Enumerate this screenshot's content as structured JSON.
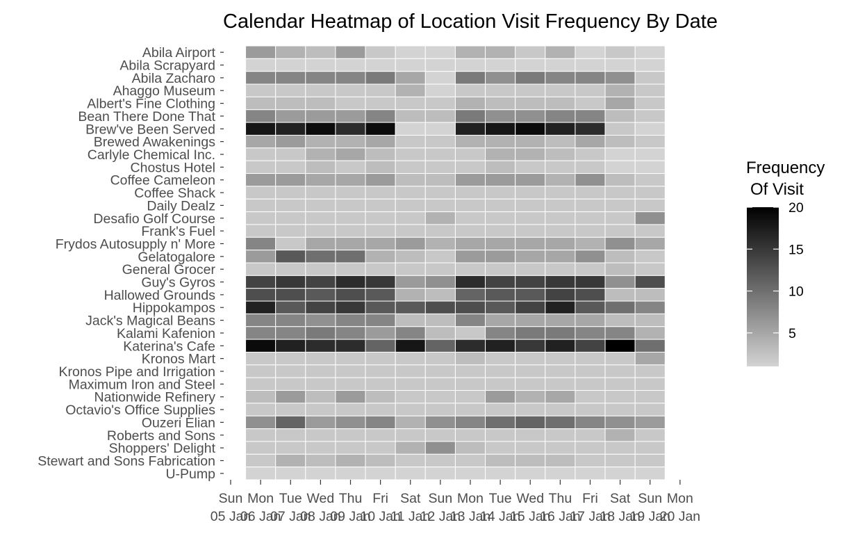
{
  "chart_data": {
    "type": "heatmap",
    "title": "Calendar Heatmap of Location Visit Frequency By Date",
    "xlabel": "",
    "ylabel": "",
    "legend": {
      "title_line1": "Frequency",
      "title_line2": "Of Visit",
      "placement": "right",
      "ticks": [
        5,
        10,
        15,
        20
      ],
      "min": 1,
      "max": 20,
      "low_color": "#d3d3d3",
      "high_color": "#000000"
    },
    "missing_color": "#d3d3d3",
    "grid": false,
    "x_ticks": [
      {
        "day": "Sun",
        "date": "05 Jan"
      },
      {
        "day": "Mon",
        "date": "06 Jan"
      },
      {
        "day": "Tue",
        "date": "07 Jan"
      },
      {
        "day": "Wed",
        "date": "08 Jan"
      },
      {
        "day": "Thu",
        "date": "09 Jan"
      },
      {
        "day": "Fri",
        "date": "10 Jan"
      },
      {
        "day": "Sat",
        "date": "11 Jan"
      },
      {
        "day": "Sun",
        "date": "12 Jan"
      },
      {
        "day": "Mon",
        "date": "13 Jan"
      },
      {
        "day": "Tue",
        "date": "14 Jan"
      },
      {
        "day": "Wed",
        "date": "15 Jan"
      },
      {
        "day": "Thu",
        "date": "16 Jan"
      },
      {
        "day": "Fri",
        "date": "17 Jan"
      },
      {
        "day": "Sat",
        "date": "18 Jan"
      },
      {
        "day": "Sun",
        "date": "19 Jan"
      },
      {
        "day": "Mon",
        "date": "20 Jan"
      }
    ],
    "dates": [
      "06 Jan",
      "07 Jan",
      "08 Jan",
      "09 Jan",
      "10 Jan",
      "11 Jan",
      "12 Jan",
      "13 Jan",
      "14 Jan",
      "15 Jan",
      "16 Jan",
      "17 Jan",
      "18 Jan",
      "19 Jan"
    ],
    "locations": [
      "Abila Airport",
      "Abila Scrapyard",
      "Abila Zacharo",
      "Ahaggo Museum",
      "Albert's Fine Clothing",
      "Bean There Done That",
      "Brew've Been Served",
      "Brewed Awakenings",
      "Carlyle Chemical Inc.",
      "Chostus Hotel",
      "Coffee Cameleon",
      "Coffee Shack",
      "Daily Dealz",
      "Desafio Golf Course",
      "Frank's Fuel",
      "Frydos Autosupply n' More",
      "Gelatogalore",
      "General Grocer",
      "Guy's Gyros",
      "Hallowed Grounds",
      "Hippokampos",
      "Jack's Magical Beans",
      "Kalami Kafenion",
      "Katerina's Cafe",
      "Kronos Mart",
      "Kronos Pipe and Irrigation",
      "Maximum Iron and Steel",
      "Nationwide Refinery",
      "Octavio's Office Supplies",
      "Ouzeri Elian",
      "Roberts and Sons",
      "Shoppers' Delight",
      "Stewart and Sons Fabrication",
      "U-Pump"
    ],
    "values": [
      [
        6,
        4,
        3,
        6,
        2,
        1,
        1,
        4,
        4,
        2,
        4,
        1,
        2,
        1
      ],
      [
        null,
        null,
        null,
        null,
        null,
        null,
        null,
        null,
        null,
        null,
        null,
        null,
        null,
        null
      ],
      [
        8,
        8,
        8,
        8,
        9,
        5,
        1,
        9,
        7,
        9,
        8,
        8,
        7,
        2
      ],
      [
        2,
        2,
        2,
        2,
        2,
        4,
        1,
        2,
        2,
        2,
        2,
        2,
        4,
        2
      ],
      [
        3,
        3,
        3,
        2,
        2,
        2,
        2,
        4,
        3,
        3,
        3,
        2,
        5,
        2
      ],
      [
        8,
        6,
        6,
        6,
        8,
        3,
        3,
        9,
        7,
        7,
        8,
        8,
        3,
        2
      ],
      [
        18,
        17,
        19,
        16,
        19,
        null,
        null,
        17,
        18,
        19,
        17,
        16,
        2,
        null
      ],
      [
        5,
        6,
        4,
        4,
        5,
        2,
        2,
        4,
        4,
        4,
        3,
        5,
        3,
        2
      ],
      [
        2,
        2,
        4,
        5,
        3,
        2,
        2,
        2,
        4,
        4,
        3,
        2,
        1,
        1
      ],
      [
        2,
        2,
        3,
        2,
        3,
        2,
        2,
        2,
        3,
        2,
        2,
        2,
        1,
        1
      ],
      [
        6,
        6,
        5,
        5,
        6,
        3,
        3,
        6,
        6,
        6,
        4,
        7,
        3,
        2
      ],
      [
        2,
        2,
        2,
        2,
        2,
        2,
        2,
        2,
        2,
        2,
        2,
        2,
        2,
        2
      ],
      [
        2,
        2,
        2,
        2,
        2,
        2,
        2,
        2,
        2,
        2,
        2,
        2,
        2,
        2
      ],
      [
        2,
        2,
        2,
        2,
        2,
        2,
        4,
        2,
        2,
        2,
        2,
        2,
        2,
        7
      ],
      [
        2,
        2,
        2,
        2,
        2,
        2,
        2,
        2,
        2,
        2,
        2,
        2,
        2,
        2
      ],
      [
        8,
        2,
        5,
        5,
        5,
        6,
        4,
        5,
        5,
        5,
        5,
        4,
        7,
        5
      ],
      [
        6,
        12,
        10,
        10,
        4,
        3,
        2,
        6,
        6,
        5,
        5,
        7,
        3,
        2
      ],
      [
        2,
        2,
        2,
        2,
        2,
        2,
        2,
        2,
        2,
        2,
        2,
        2,
        3,
        2
      ],
      [
        14,
        15,
        14,
        16,
        15,
        6,
        7,
        16,
        14,
        14,
        15,
        15,
        7,
        13
      ],
      [
        13,
        13,
        12,
        13,
        12,
        4,
        3,
        11,
        12,
        12,
        14,
        13,
        3,
        3
      ],
      [
        17,
        12,
        14,
        15,
        12,
        12,
        13,
        13,
        12,
        14,
        17,
        12,
        10,
        8
      ],
      [
        8,
        8,
        7,
        8,
        8,
        3,
        3,
        8,
        5,
        5,
        5,
        5,
        3,
        3
      ],
      [
        8,
        8,
        9,
        8,
        6,
        8,
        3,
        2,
        8,
        9,
        9,
        8,
        8,
        4
      ],
      [
        19,
        17,
        16,
        16,
        11,
        18,
        11,
        16,
        17,
        15,
        17,
        14,
        20,
        10
      ],
      [
        2,
        2,
        2,
        2,
        2,
        2,
        2,
        3,
        2,
        2,
        2,
        2,
        2,
        5
      ],
      [
        2,
        2,
        2,
        2,
        2,
        2,
        2,
        2,
        2,
        2,
        2,
        2,
        2,
        2
      ],
      [
        2,
        2,
        2,
        2,
        2,
        2,
        2,
        2,
        2,
        2,
        2,
        2,
        2,
        2
      ],
      [
        3,
        6,
        3,
        6,
        3,
        2,
        2,
        2,
        6,
        4,
        5,
        2,
        2,
        2
      ],
      [
        2,
        2,
        2,
        2,
        2,
        2,
        2,
        2,
        2,
        2,
        2,
        2,
        2,
        2
      ],
      [
        7,
        11,
        6,
        7,
        8,
        4,
        7,
        8,
        10,
        11,
        10,
        8,
        7,
        6
      ],
      [
        2,
        2,
        2,
        2,
        2,
        2,
        2,
        2,
        2,
        2,
        2,
        2,
        4,
        2
      ],
      [
        2,
        2,
        2,
        2,
        2,
        4,
        7,
        3,
        2,
        2,
        2,
        2,
        2,
        2
      ],
      [
        2,
        4,
        3,
        4,
        3,
        2,
        2,
        2,
        3,
        3,
        3,
        2,
        2,
        2
      ],
      [
        null,
        null,
        null,
        null,
        null,
        null,
        null,
        null,
        null,
        null,
        null,
        null,
        null,
        null
      ]
    ]
  }
}
